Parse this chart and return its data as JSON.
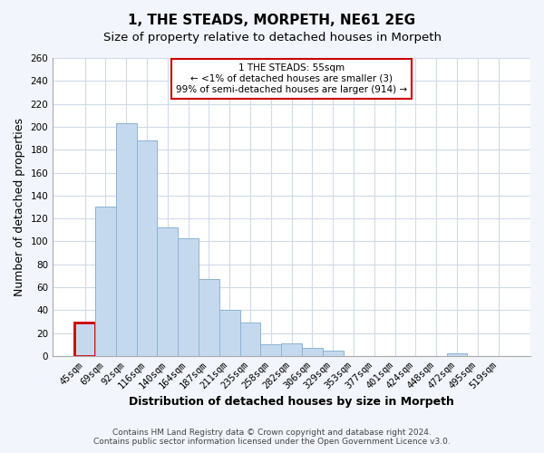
{
  "title": "1, THE STEADS, MORPETH, NE61 2EG",
  "subtitle": "Size of property relative to detached houses in Morpeth",
  "xlabel": "Distribution of detached houses by size in Morpeth",
  "ylabel": "Number of detached properties",
  "bar_color": "#c5d9ee",
  "bar_edge_color": "#8ab4d4",
  "highlight_bar_edge_color": "#cc0000",
  "categories": [
    "45sqm",
    "69sqm",
    "92sqm",
    "116sqm",
    "140sqm",
    "164sqm",
    "187sqm",
    "211sqm",
    "235sqm",
    "258sqm",
    "282sqm",
    "306sqm",
    "329sqm",
    "353sqm",
    "377sqm",
    "401sqm",
    "424sqm",
    "448sqm",
    "472sqm",
    "495sqm",
    "519sqm"
  ],
  "values": [
    29,
    130,
    203,
    188,
    112,
    103,
    67,
    40,
    29,
    10,
    11,
    7,
    5,
    0,
    0,
    0,
    0,
    0,
    2,
    0,
    0
  ],
  "highlight_index": 0,
  "ylim": [
    0,
    260
  ],
  "yticks": [
    0,
    20,
    40,
    60,
    80,
    100,
    120,
    140,
    160,
    180,
    200,
    220,
    240,
    260
  ],
  "annotation_line1": "1 THE STEADS: 55sqm",
  "annotation_line2": "← <1% of detached houses are smaller (3)",
  "annotation_line3": "99% of semi-detached houses are larger (914) →",
  "footer_line1": "Contains HM Land Registry data © Crown copyright and database right 2024.",
  "footer_line2": "Contains public sector information licensed under the Open Government Licence v3.0.",
  "bg_color": "#f2f5fb",
  "plot_bg_color": "#ffffff",
  "grid_color": "#d0daea",
  "title_fontsize": 11,
  "subtitle_fontsize": 9.5,
  "tick_fontsize": 7.5,
  "label_fontsize": 9,
  "footer_fontsize": 6.5
}
